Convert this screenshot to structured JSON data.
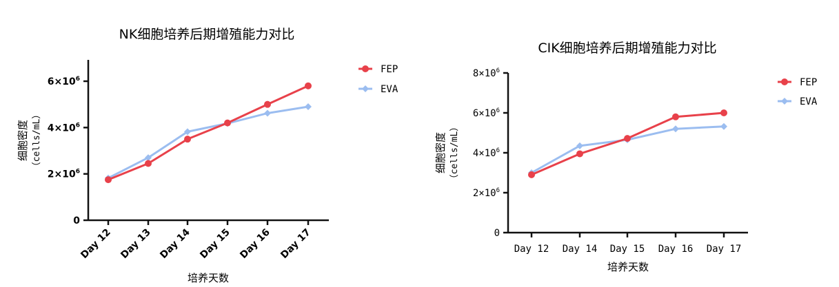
{
  "chart_data": [
    {
      "type": "line",
      "title": "NK细胞培养后期增殖能力对比",
      "categories": [
        "Day 12",
        "Day 13",
        "Day 14",
        "Day 15",
        "Day 16",
        "Day 17"
      ],
      "xlabel": "培养天数",
      "ylabel": "细胞密度",
      "yunit": "（cells/mL）",
      "ylim": [
        0,
        7000000
      ],
      "yticks": [
        {
          "value": 0,
          "label": "0",
          "sup": ""
        },
        {
          "value": 2000000,
          "label": "2×10",
          "sup": "6"
        },
        {
          "value": 4000000,
          "label": "4×10",
          "sup": "6"
        },
        {
          "value": 6000000,
          "label": "6×10",
          "sup": "6"
        }
      ],
      "legend_position": "top-right",
      "series": [
        {
          "name": "FEP",
          "color": "#e8414a",
          "marker": "circle",
          "values": [
            1750000,
            2450000,
            3500000,
            4200000,
            5000000,
            5800000
          ]
        },
        {
          "name": "EVA",
          "color": "#9bbdf0",
          "marker": "diamond",
          "values": [
            1820000,
            2700000,
            3820000,
            4180000,
            4620000,
            4900000
          ]
        }
      ]
    },
    {
      "type": "line",
      "title": "CIK细胞培养后期增殖能力对比",
      "categories": [
        "Day 12",
        "Day 14",
        "Day 15",
        "Day 16",
        "Day 17"
      ],
      "xlabel": "培养天数",
      "ylabel": "细胞密度",
      "yunit": "（cells/mL）",
      "ylim": [
        0,
        8000000
      ],
      "yticks": [
        {
          "value": 0,
          "label": "0",
          "sup": ""
        },
        {
          "value": 2000000,
          "label": "2×10",
          "sup": "6"
        },
        {
          "value": 4000000,
          "label": "4×10",
          "sup": "6"
        },
        {
          "value": 6000000,
          "label": "6×10",
          "sup": "6"
        },
        {
          "value": 8000000,
          "label": "8×10",
          "sup": "6"
        }
      ],
      "legend_position": "top-right",
      "series": [
        {
          "name": "FEP",
          "color": "#e8414a",
          "marker": "circle",
          "values": [
            2900000,
            3950000,
            4720000,
            5800000,
            6000000
          ]
        },
        {
          "name": "EVA",
          "color": "#9bbdf0",
          "marker": "diamond",
          "values": [
            3000000,
            4350000,
            4650000,
            5200000,
            5320000
          ]
        }
      ]
    }
  ]
}
